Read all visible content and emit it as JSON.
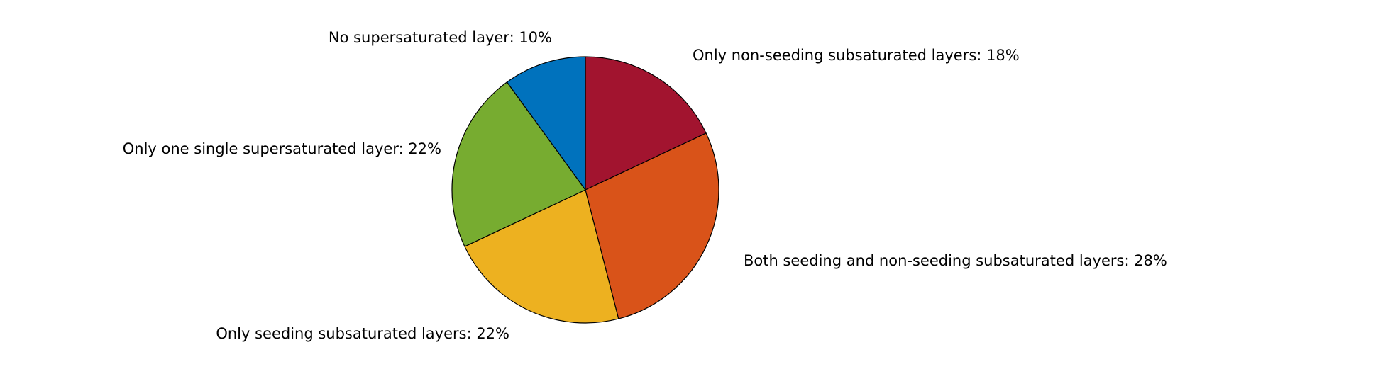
{
  "chart_data": {
    "type": "pie",
    "title": "",
    "start": "top",
    "direction": "clockwise",
    "slices": [
      {
        "label": "Only non-seeding subsaturated layers: 18%",
        "value": 18,
        "color": "#A2142F"
      },
      {
        "label": "Both seeding and non-seeding subsaturated layers: 28%",
        "value": 28,
        "color": "#D95319"
      },
      {
        "label": "Only seeding subsaturated layers: 22%",
        "value": 22,
        "color": "#EDB120"
      },
      {
        "label": "Only one single supersaturated layer: 22%",
        "value": 22,
        "color": "#77AC30"
      },
      {
        "label": "No supersaturated layer: 10%",
        "value": 10,
        "color": "#0072BD"
      }
    ]
  }
}
